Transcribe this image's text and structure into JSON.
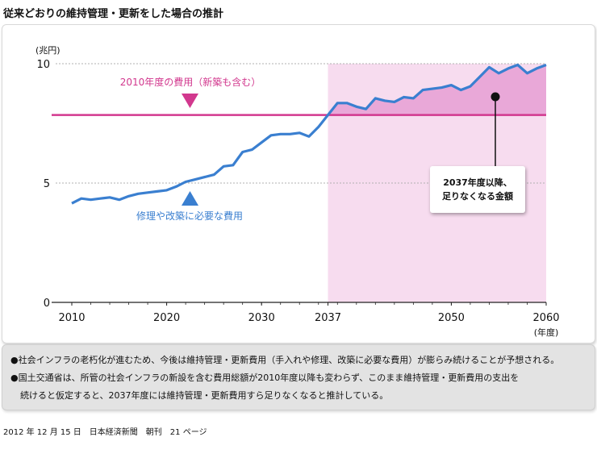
{
  "title": "従来どおりの維持管理・更新をした場合の推計",
  "chart_data": {
    "type": "line",
    "unit_label": "(兆円)",
    "x_unit_label": "(年度)",
    "xlim": [
      2010,
      2060
    ],
    "ylim": [
      0,
      10
    ],
    "x_ticks": [
      "2010",
      "2020",
      "2030",
      "2037",
      "2050",
      "2060"
    ],
    "y_ticks": [
      "0",
      "5",
      "10"
    ],
    "grid": "dotted horizontal at 5 and 10",
    "highlight_region": {
      "x_start": 2037,
      "x_end": 2060,
      "color": "#f7dcef"
    },
    "shortfall_fill_color": "#e9a8d8",
    "series": [
      {
        "color": "#3a7fd0",
        "x": [
          2010,
          2011,
          2012,
          2013,
          2014,
          2015,
          2016,
          2017,
          2018,
          2019,
          2020,
          2021,
          2022,
          2023,
          2024,
          2025,
          2026,
          2027,
          2028,
          2029,
          2030,
          2031,
          2032,
          2033,
          2034,
          2035,
          2036,
          2037,
          2038,
          2039,
          2040,
          2041,
          2042,
          2043,
          2044,
          2045,
          2046,
          2047,
          2048,
          2049,
          2050,
          2051,
          2052,
          2053,
          2054,
          2055,
          2056,
          2057,
          2058,
          2059,
          2060
        ],
        "values": [
          4.15,
          4.35,
          4.3,
          4.35,
          4.4,
          4.3,
          4.45,
          4.55,
          4.6,
          4.65,
          4.7,
          4.85,
          5.05,
          5.15,
          5.25,
          5.35,
          5.7,
          5.75,
          6.3,
          6.4,
          6.7,
          7.0,
          7.05,
          7.05,
          7.1,
          6.95,
          7.35,
          7.85,
          8.35,
          8.35,
          8.2,
          8.1,
          8.55,
          8.45,
          8.4,
          8.6,
          8.55,
          8.9,
          8.95,
          9.0,
          9.1,
          8.9,
          9.05,
          9.45,
          9.85,
          9.6,
          9.8,
          9.95,
          9.6,
          9.8,
          9.95
        ]
      }
    ],
    "constant_line": {
      "value": 7.85,
      "color": "#d2388e"
    },
    "annotations": {
      "constant_label": "2010年度の費用（新築も含む）",
      "series_label": "修理や改築に必要な費用",
      "callout_lines": [
        "2037年度以降、",
        "足りなくなる金額"
      ]
    }
  },
  "notes": [
    "●社会インフラの老朽化が進むため、今後は維持管理・更新費用（手入れや修理、改築に必要な費用）が膨らみ続けることが予想される。",
    "●国土交通省は、所管の社会インフラの新設を含む費用総額が2010年度以降も変わらず、このまま維持管理・更新費用の支出を",
    "続けると仮定すると、2037年度には維持管理・更新費用すら足りなくなると推計している。"
  ],
  "source": "2012 年 12 月 15 日　日本経済新聞　朝刊　21 ページ"
}
